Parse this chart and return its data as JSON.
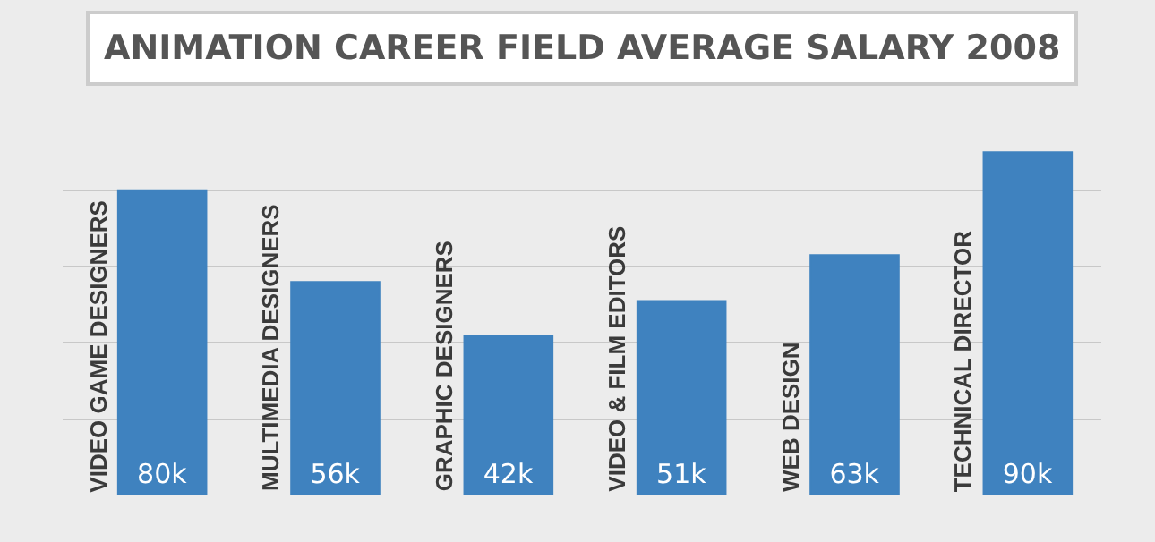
{
  "chart_data": {
    "type": "bar",
    "title": "ANIMATION CAREER FIELD AVERAGE SALARY 2008",
    "categories": [
      "VIDEO GAME DESIGNERS",
      "MULTIMEDIA DESIGNERS",
      "GRAPHIC DESIGNERS",
      "VIDEO & FILM EDITORS",
      "WEB DESIGN",
      "TECHNICAL DIRECTOR"
    ],
    "values": [
      80,
      56,
      42,
      51,
      63,
      90
    ],
    "value_labels": [
      "80k",
      "56k",
      "42k",
      "51k",
      "63k",
      "90k"
    ],
    "color": "#3f82bf",
    "grid": "y"
  }
}
